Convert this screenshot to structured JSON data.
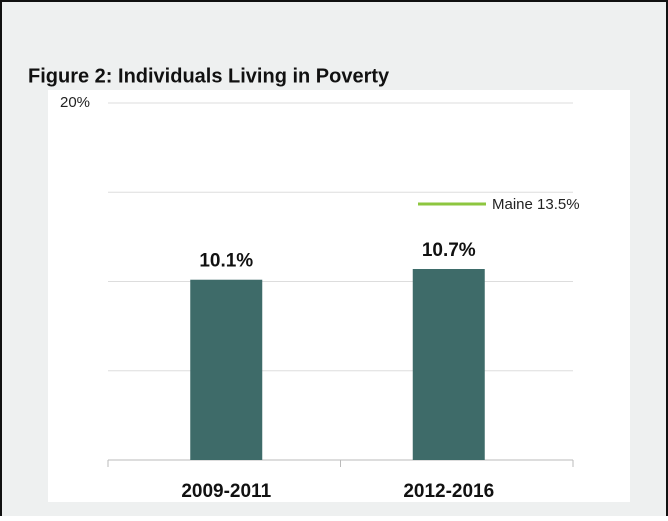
{
  "chart_data": {
    "type": "bar",
    "title": "Figure 2: Individuals Living in Poverty",
    "categories": [
      "2009-2011",
      "2012-2016"
    ],
    "values": [
      10.1,
      10.7
    ],
    "value_labels": [
      "10.1%",
      "10.7%"
    ],
    "color": "#3e6b69",
    "ylim": [
      0,
      20
    ],
    "yticks": [
      0,
      5,
      10,
      15,
      {
        "value": 20,
        "label": "20%"
      }
    ],
    "grid": true,
    "reference_lines": [
      {
        "value": 13.5,
        "label": "Maine 13.5%",
        "color": "#8dc63f"
      }
    ]
  }
}
